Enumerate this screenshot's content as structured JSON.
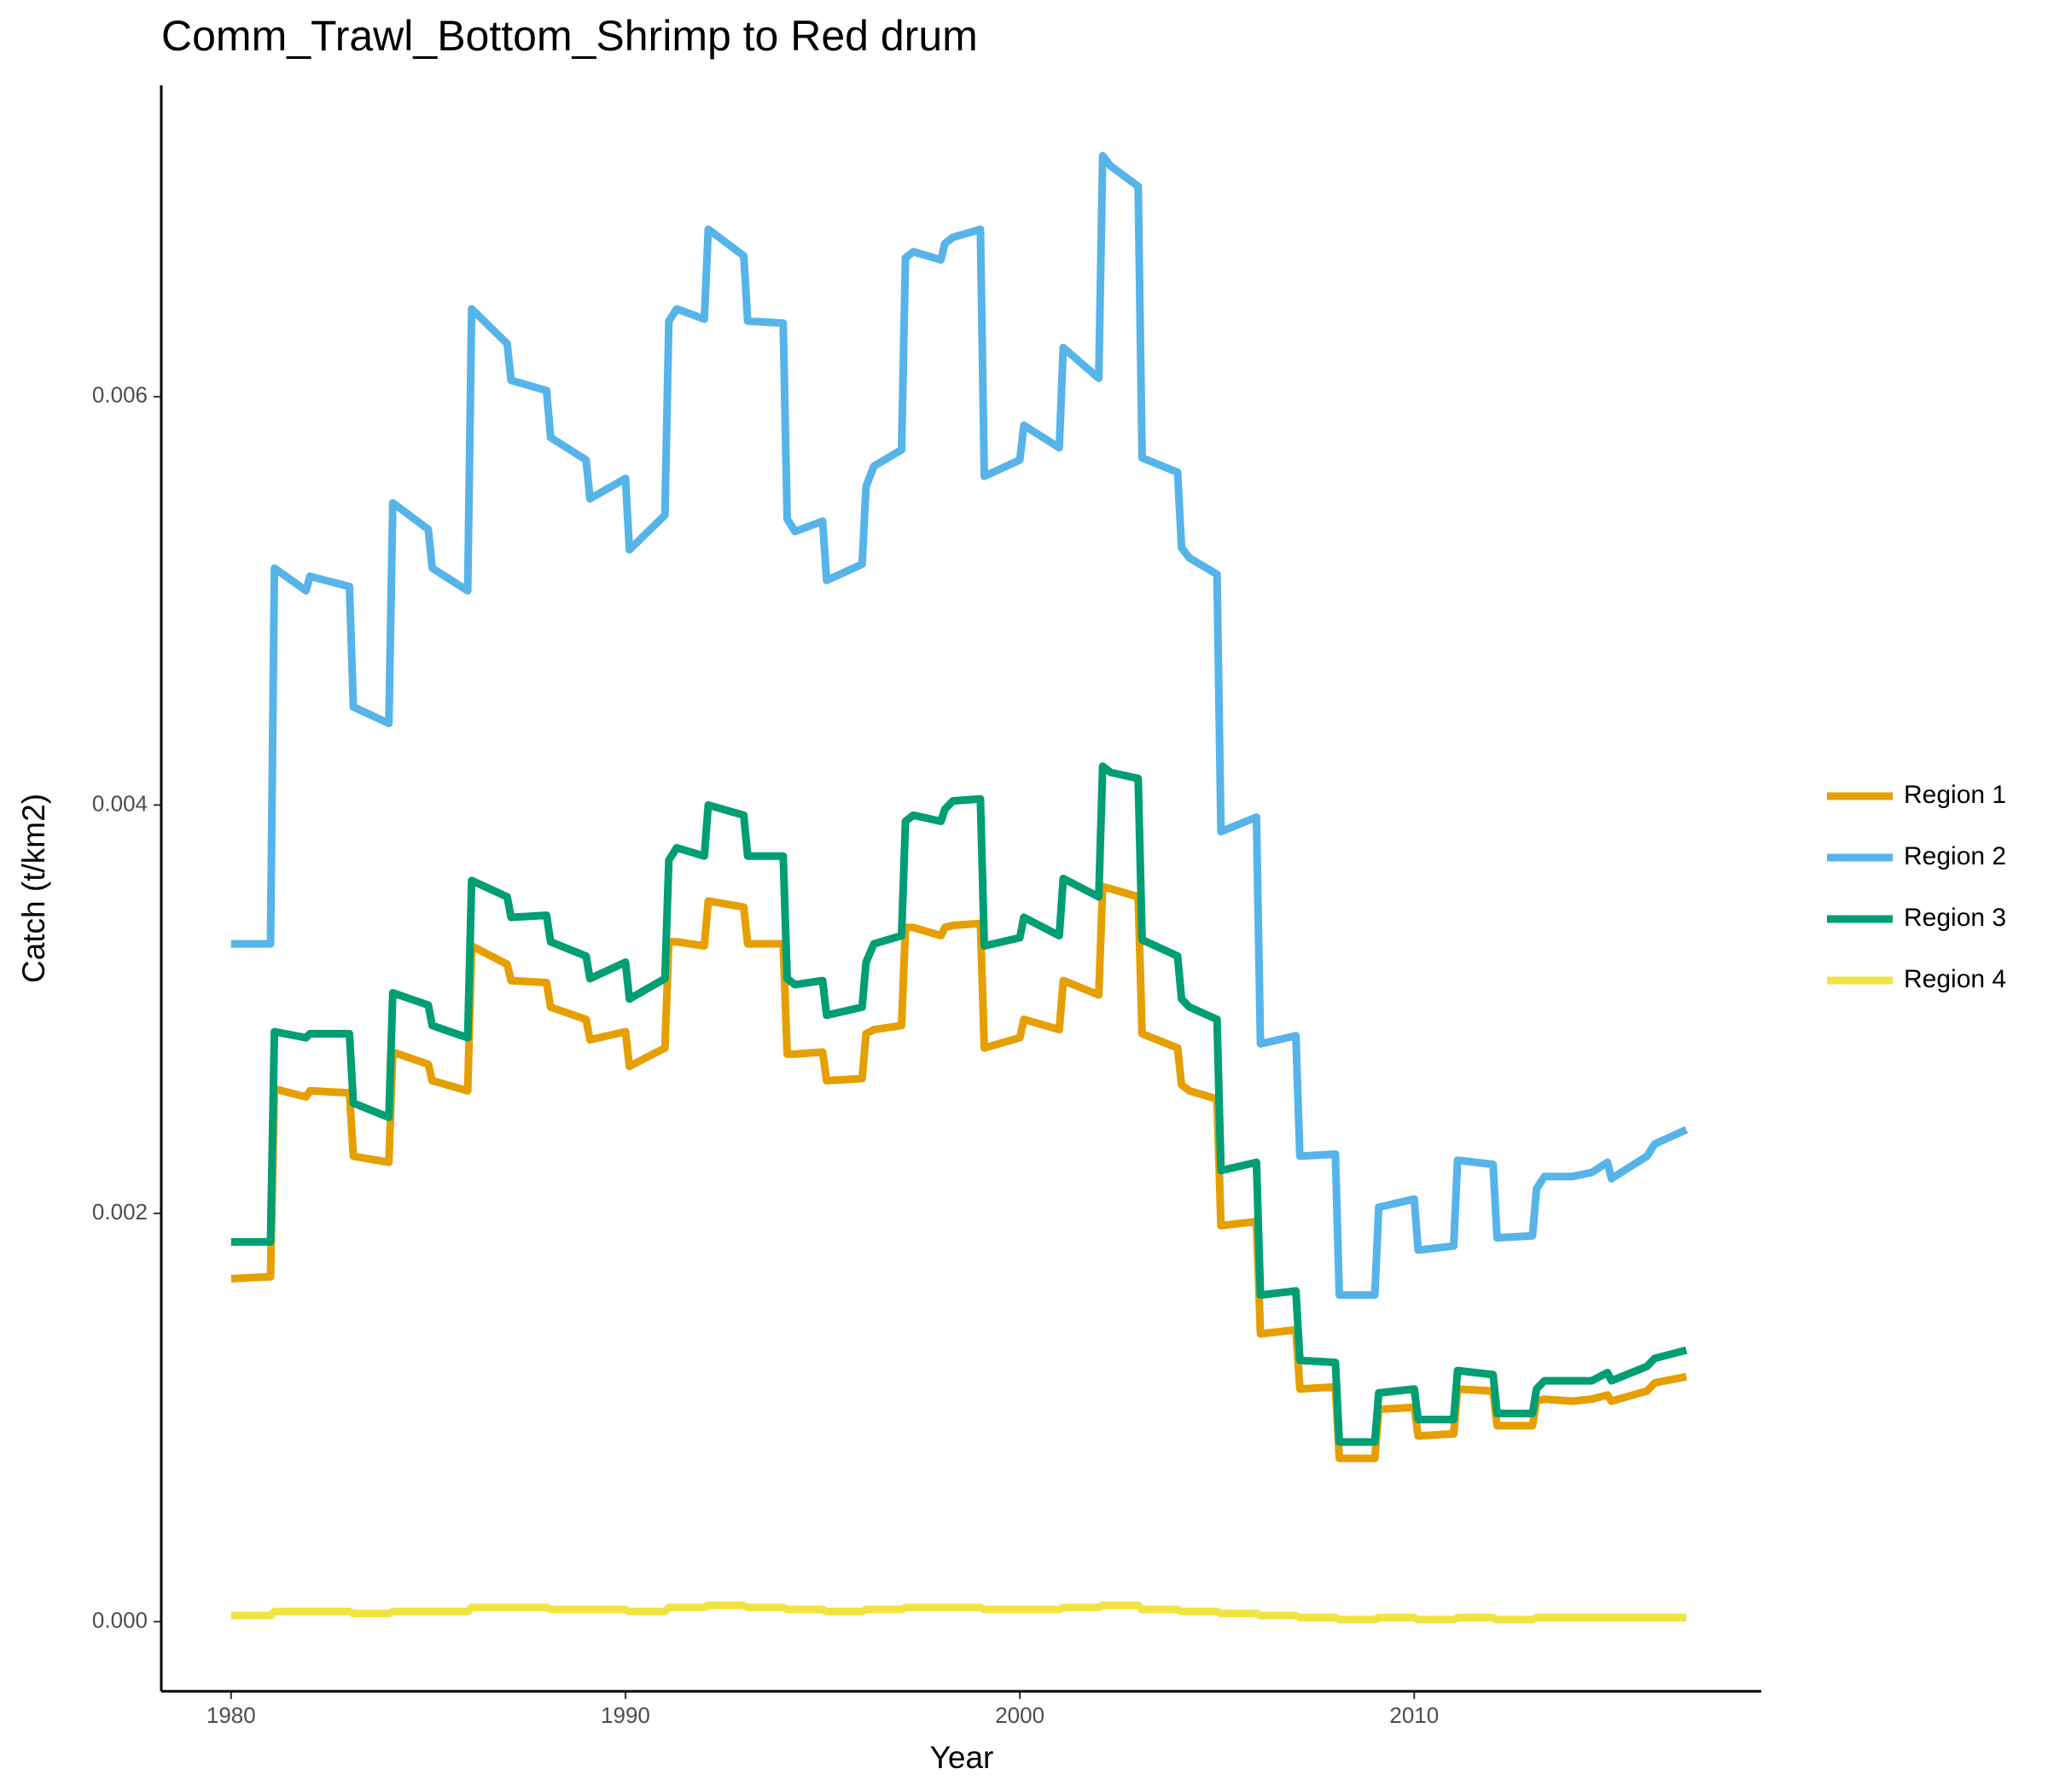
{
  "chart_data": {
    "type": "line",
    "title": "Comm_Trawl_Bottom_Shrimp to Red drum",
    "xlabel": "Year",
    "ylabel": "Catch (t/km2)",
    "x": [
      1980,
      1981,
      1981.1,
      1981.9,
      1982,
      1983,
      1983.1,
      1984,
      1984.1,
      1985,
      1985.1,
      1986,
      1986.1,
      1987,
      1987.1,
      1988,
      1988.1,
      1989,
      1989.1,
      1990,
      1990.1,
      1991,
      1991.1,
      1991.3,
      1992,
      1992.1,
      1993,
      1993.1,
      1994,
      1994.1,
      1994.3,
      1995,
      1995.1,
      1996,
      1996.1,
      1996.3,
      1997,
      1997.1,
      1997.3,
      1998,
      1998.1,
      1998.3,
      1999,
      1999.1,
      2000,
      2000.1,
      2001,
      2001.1,
      2002,
      2002.1,
      2002.3,
      2003,
      2003.1,
      2004,
      2004.1,
      2004.3,
      2005,
      2005.1,
      2006,
      2006.1,
      2007,
      2007.1,
      2008,
      2008.1,
      2009,
      2009.1,
      2010,
      2010.1,
      2011,
      2011.1,
      2012,
      2012.1,
      2013,
      2013.1,
      2013.3,
      2014,
      2014.5,
      2014.9,
      2015,
      2015.9,
      2016.1,
      2016.9
    ],
    "series": [
      {
        "name": "Region 1",
        "color": "#E69F00",
        "values": [
          0.00168,
          0.00169,
          0.00261,
          0.00257,
          0.0026,
          0.00259,
          0.00228,
          0.00225,
          0.00279,
          0.00273,
          0.00265,
          0.0026,
          0.00331,
          0.00322,
          0.00314,
          0.00313,
          0.00301,
          0.00295,
          0.00285,
          0.00289,
          0.00272,
          0.00281,
          0.00333,
          0.00333,
          0.00331,
          0.00353,
          0.0035,
          0.00332,
          0.00332,
          0.00278,
          0.00278,
          0.00279,
          0.00265,
          0.00266,
          0.00288,
          0.0029,
          0.00292,
          0.0034,
          0.0034,
          0.00336,
          0.0034,
          0.00341,
          0.00342,
          0.00281,
          0.00286,
          0.00295,
          0.0029,
          0.00314,
          0.00307,
          0.0036,
          0.00359,
          0.00355,
          0.00288,
          0.00281,
          0.00263,
          0.0026,
          0.00256,
          0.00194,
          0.00196,
          0.00141,
          0.00143,
          0.00114,
          0.00115,
          0.0008,
          0.0008,
          0.00104,
          0.00105,
          0.00091,
          0.00092,
          0.00114,
          0.00113,
          0.00096,
          0.00096,
          0.00108,
          0.00109,
          0.00108,
          0.00109,
          0.00111,
          0.00108,
          0.00113,
          0.00117,
          0.0012
        ]
      },
      {
        "name": "Region 2",
        "color": "#56B4E9",
        "values": [
          0.00332,
          0.00332,
          0.00516,
          0.00505,
          0.00512,
          0.00507,
          0.00448,
          0.0044,
          0.00548,
          0.00535,
          0.00516,
          0.00505,
          0.00643,
          0.00626,
          0.00608,
          0.00603,
          0.0058,
          0.00569,
          0.0055,
          0.0056,
          0.00525,
          0.00542,
          0.00637,
          0.00643,
          0.00638,
          0.00682,
          0.00669,
          0.00637,
          0.00636,
          0.0054,
          0.00534,
          0.00539,
          0.0051,
          0.00518,
          0.00556,
          0.00566,
          0.00574,
          0.00668,
          0.00671,
          0.00667,
          0.00675,
          0.00678,
          0.00682,
          0.00561,
          0.00569,
          0.00586,
          0.00575,
          0.00624,
          0.00609,
          0.00718,
          0.00713,
          0.00703,
          0.0057,
          0.00563,
          0.00526,
          0.00521,
          0.00513,
          0.00387,
          0.00394,
          0.00283,
          0.00287,
          0.00228,
          0.00229,
          0.0016,
          0.0016,
          0.00203,
          0.00207,
          0.00182,
          0.00184,
          0.00226,
          0.00224,
          0.00188,
          0.00189,
          0.00212,
          0.00218,
          0.00218,
          0.0022,
          0.00225,
          0.00217,
          0.00228,
          0.00234,
          0.00241
        ]
      },
      {
        "name": "Region 3",
        "color": "#009E73",
        "values": [
          0.00186,
          0.00186,
          0.00289,
          0.00286,
          0.00288,
          0.00288,
          0.00254,
          0.00247,
          0.00308,
          0.00302,
          0.00292,
          0.00286,
          0.00363,
          0.00355,
          0.00345,
          0.00346,
          0.00333,
          0.00326,
          0.00315,
          0.00323,
          0.00305,
          0.00315,
          0.00373,
          0.00379,
          0.00375,
          0.004,
          0.00395,
          0.00375,
          0.00375,
          0.00315,
          0.00312,
          0.00314,
          0.00297,
          0.00301,
          0.00323,
          0.00332,
          0.00336,
          0.00392,
          0.00395,
          0.00392,
          0.00398,
          0.00402,
          0.00403,
          0.00331,
          0.00335,
          0.00345,
          0.00336,
          0.00364,
          0.00355,
          0.00419,
          0.00416,
          0.00413,
          0.00334,
          0.00326,
          0.00305,
          0.00301,
          0.00295,
          0.00221,
          0.00225,
          0.0016,
          0.00162,
          0.00128,
          0.00127,
          0.00088,
          0.00088,
          0.00112,
          0.00114,
          0.00099,
          0.00099,
          0.00123,
          0.00121,
          0.00102,
          0.00102,
          0.00114,
          0.00118,
          0.00118,
          0.00118,
          0.00122,
          0.00118,
          0.00125,
          0.00129,
          0.00133
        ]
      },
      {
        "name": "Region 4",
        "color": "#F0E442",
        "values": [
          3e-05,
          3e-05,
          5e-05,
          5e-05,
          5e-05,
          5e-05,
          4e-05,
          4e-05,
          5e-05,
          5e-05,
          5e-05,
          5e-05,
          7e-05,
          7e-05,
          7e-05,
          7e-05,
          6e-05,
          6e-05,
          6e-05,
          6e-05,
          5e-05,
          5e-05,
          7e-05,
          7e-05,
          7e-05,
          8e-05,
          8e-05,
          7e-05,
          7e-05,
          6e-05,
          6e-05,
          6e-05,
          5e-05,
          5e-05,
          6e-05,
          6e-05,
          6e-05,
          7e-05,
          7e-05,
          7e-05,
          7e-05,
          7e-05,
          7e-05,
          6e-05,
          6e-05,
          6e-05,
          6e-05,
          7e-05,
          7e-05,
          8e-05,
          8e-05,
          8e-05,
          6e-05,
          6e-05,
          5e-05,
          5e-05,
          5e-05,
          4e-05,
          4e-05,
          3e-05,
          3e-05,
          2e-05,
          2e-05,
          1e-05,
          1e-05,
          2e-05,
          2e-05,
          1e-05,
          1e-05,
          2e-05,
          2e-05,
          1e-05,
          1e-05,
          2e-05,
          2e-05,
          2e-05,
          2e-05,
          2e-05,
          2e-05,
          2e-05,
          2e-05,
          2e-05
        ]
      }
    ],
    "xlim": [
      1978.23,
      2018.8
    ],
    "xticks": [
      1980,
      1990,
      2000,
      2010
    ],
    "ylim": [
      -0.000341,
      0.007525
    ],
    "yticks": [
      {
        "value": 0,
        "label": "0.000"
      },
      {
        "value": 0.002,
        "label": "0.002"
      },
      {
        "value": 0.004,
        "label": "0.004"
      },
      {
        "value": 0.006,
        "label": "0.006"
      }
    ],
    "grid": false,
    "legend": "right"
  }
}
